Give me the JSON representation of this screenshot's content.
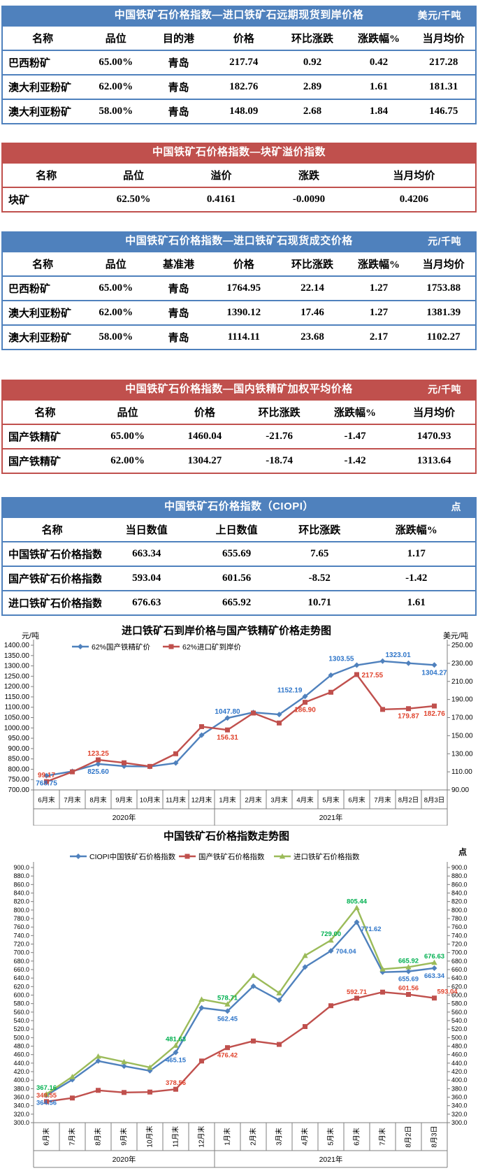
{
  "tables": [
    {
      "title": "中国铁矿石价格指数—进口铁矿石远期现货到岸价格",
      "unit": "美元/千吨",
      "theme": "blue",
      "columns": [
        "名称",
        "品位",
        "目的港",
        "价格",
        "环比涨跌",
        "涨跌幅%",
        "当月均价"
      ],
      "rows": [
        [
          "巴西粉矿",
          "65.00%",
          "青岛",
          "217.74",
          "0.92",
          "0.42",
          "217.28"
        ],
        [
          "澳大利亚粉矿",
          "62.00%",
          "青岛",
          "182.76",
          "2.89",
          "1.61",
          "181.31"
        ],
        [
          "澳大利亚粉矿",
          "58.00%",
          "青岛",
          "148.09",
          "2.68",
          "1.84",
          "146.75"
        ]
      ]
    },
    {
      "title": "中国铁矿石价格指数—块矿溢价指数",
      "unit": "",
      "theme": "red",
      "columns": [
        "名称",
        "品位",
        "溢价",
        "涨跌",
        "当月均价"
      ],
      "rows": [
        [
          "块矿",
          "62.50%",
          "0.4161",
          "-0.0090",
          "0.4206"
        ]
      ]
    },
    {
      "title": "中国铁矿石价格指数—进口铁矿石现货成交价格",
      "unit": "元/千吨",
      "theme": "blue",
      "columns": [
        "名称",
        "品位",
        "基准港",
        "价格",
        "环比涨跌",
        "涨跌幅%",
        "当月均价"
      ],
      "rows": [
        [
          "巴西粉矿",
          "65.00%",
          "青岛",
          "1764.95",
          "22.14",
          "1.27",
          "1753.88"
        ],
        [
          "澳大利亚粉矿",
          "62.00%",
          "青岛",
          "1390.12",
          "17.46",
          "1.27",
          "1381.39"
        ],
        [
          "澳大利亚粉矿",
          "58.00%",
          "青岛",
          "1114.11",
          "23.68",
          "2.17",
          "1102.27"
        ]
      ]
    },
    {
      "title": "中国铁矿石价格指数—国内铁精矿加权平均价格",
      "unit": "元/千吨",
      "theme": "red",
      "columns": [
        "名称",
        "品位",
        "价格",
        "环比涨跌",
        "涨跌幅%",
        "当月均价"
      ],
      "rows": [
        [
          "国产铁精矿",
          "65.00%",
          "1460.04",
          "-21.76",
          "-1.47",
          "1470.93"
        ],
        [
          "国产铁精矿",
          "62.00%",
          "1304.27",
          "-18.74",
          "-1.42",
          "1313.64"
        ]
      ]
    },
    {
      "title": "中国铁矿石价格指数（CIOPI）",
      "unit": "点",
      "theme": "blue",
      "columns": [
        "名称",
        "当日数值",
        "上日数值",
        "环比涨跌",
        "涨跌幅%"
      ],
      "rows": [
        [
          "中国铁矿石价格指数",
          "663.34",
          "655.69",
          "7.65",
          "1.17"
        ],
        [
          "国产铁矿石价格指数",
          "593.04",
          "601.56",
          "-8.52",
          "-1.42"
        ],
        [
          "进口铁矿石价格指数",
          "676.63",
          "665.92",
          "10.71",
          "1.61"
        ]
      ]
    }
  ],
  "chart_data": [
    {
      "type": "line",
      "title": "进口铁矿石到岸价格与国产铁精矿价格走势图",
      "left_axis": {
        "label": "元/吨",
        "min": 700,
        "max": 1400,
        "step": 50,
        "decimals": 2
      },
      "right_axis": {
        "label": "美元/吨",
        "min": 90,
        "max": 250,
        "step": 20,
        "decimals": 2
      },
      "categories": [
        "6月末",
        "7月末",
        "8月末",
        "9月末",
        "10月末",
        "11月末",
        "12月末",
        "1月末",
        "2月末",
        "3月末",
        "4月末",
        "5月末",
        "6月末",
        "7月末",
        "8月2日",
        "8月3日"
      ],
      "year_groups": [
        {
          "label": "2020年",
          "count": 7
        },
        {
          "label": "2021年",
          "count": 9
        }
      ],
      "series": [
        {
          "name": "62%国产铁精矿价",
          "axis": "left",
          "marker": "diamond",
          "color": "#4f81bd",
          "label_color": "#2e75c9",
          "values": [
            768.75,
            790,
            825.6,
            815,
            813,
            830,
            965,
            1047.8,
            1075,
            1065,
            1152.19,
            1255,
            1303.55,
            1323.01,
            1313,
            1304.27
          ]
        },
        {
          "name": "62%进口矿到岸价",
          "axis": "right",
          "marker": "square",
          "color": "#c0504d",
          "label_color": "#e0442e",
          "values": [
            99.17,
            110,
            123.25,
            120,
            116,
            130,
            160,
            156.31,
            175,
            164,
            186.9,
            198,
            217.55,
            179,
            179.87,
            182.76
          ]
        }
      ],
      "point_labels": [
        {
          "series": 0,
          "index": 0,
          "text": "768.75",
          "pos": "below"
        },
        {
          "series": 0,
          "index": 2,
          "text": "825.60",
          "pos": "below"
        },
        {
          "series": 0,
          "index": 7,
          "text": "1047.80",
          "pos": "above"
        },
        {
          "series": 0,
          "index": 10,
          "text": "1152.19",
          "pos": "above-left"
        },
        {
          "series": 0,
          "index": 12,
          "text": "1303.55",
          "pos": "above-left"
        },
        {
          "series": 0,
          "index": 13,
          "text": "1323.01",
          "pos": "above-right"
        },
        {
          "series": 0,
          "index": 15,
          "text": "1304.27",
          "pos": "below"
        },
        {
          "series": 1,
          "index": 0,
          "text": "99.17",
          "pos": "above"
        },
        {
          "series": 1,
          "index": 2,
          "text": "123.25",
          "pos": "above"
        },
        {
          "series": 1,
          "index": 7,
          "text": "156.31",
          "pos": "below"
        },
        {
          "series": 1,
          "index": 10,
          "text": "186.90",
          "pos": "below"
        },
        {
          "series": 1,
          "index": 12,
          "text": "217.55",
          "pos": "right"
        },
        {
          "series": 1,
          "index": 14,
          "text": "179.87",
          "pos": "below"
        },
        {
          "series": 1,
          "index": 15,
          "text": "182.76",
          "pos": "below"
        }
      ]
    },
    {
      "type": "line",
      "title": "中国铁矿石价格指数走势图",
      "unit_label": "点",
      "left_axis": {
        "label": "",
        "min": 300,
        "max": 900,
        "step": 20,
        "decimals": 1
      },
      "right_axis": {
        "label": "",
        "min": 300,
        "max": 900,
        "step": 20,
        "decimals": 1
      },
      "categories": [
        "6月末",
        "7月末",
        "8月末",
        "9月末",
        "10月末",
        "11月末",
        "12月末",
        "1月末",
        "2月末",
        "3月末",
        "4月末",
        "5月末",
        "6月末",
        "7月末",
        "8月2日",
        "8月3日"
      ],
      "year_groups": [
        {
          "label": "2020年",
          "count": 7
        },
        {
          "label": "2021年",
          "count": 9
        }
      ],
      "series": [
        {
          "name": "CIOPI中国铁矿石价格指数",
          "axis": "left",
          "marker": "diamond",
          "color": "#4f81bd",
          "label_color": "#2e75c9",
          "values": [
            364.56,
            401,
            445,
            433,
            422,
            465.15,
            570,
            562.45,
            621,
            588,
            666,
            704.04,
            771.62,
            654,
            655.69,
            663.34
          ]
        },
        {
          "name": "国产铁矿石价格指数",
          "axis": "left",
          "marker": "square",
          "color": "#c0504d",
          "label_color": "#e0442e",
          "values": [
            349.55,
            358,
            376,
            371,
            372,
            378.56,
            445,
            476.42,
            492,
            484,
            526,
            575,
            592.71,
            607,
            601.56,
            593.04
          ]
        },
        {
          "name": "进口铁矿石价格指数",
          "axis": "left",
          "marker": "triangle",
          "color": "#9bbb59",
          "label_color": "#00b050",
          "values": [
            367.16,
            408,
            456,
            443,
            430,
            481.63,
            590,
            578.71,
            646,
            605,
            693,
            729,
            805.44,
            661,
            665.92,
            676.63
          ]
        }
      ],
      "point_labels": [
        {
          "series": 2,
          "index": 0,
          "text": "367.16",
          "pos": "above"
        },
        {
          "series": 1,
          "index": 0,
          "text": "349.55",
          "pos": "above"
        },
        {
          "series": 0,
          "index": 0,
          "text": "364.56",
          "pos": "below"
        },
        {
          "series": 2,
          "index": 5,
          "text": "481.63",
          "pos": "above"
        },
        {
          "series": 0,
          "index": 5,
          "text": "465.15",
          "pos": "below"
        },
        {
          "series": 1,
          "index": 5,
          "text": "378.56",
          "pos": "above"
        },
        {
          "series": 2,
          "index": 7,
          "text": "578.71",
          "pos": "above"
        },
        {
          "series": 0,
          "index": 7,
          "text": "562.45",
          "pos": "below"
        },
        {
          "series": 1,
          "index": 7,
          "text": "476.42",
          "pos": "below"
        },
        {
          "series": 2,
          "index": 11,
          "text": "729.00",
          "pos": "above"
        },
        {
          "series": 0,
          "index": 11,
          "text": "704.04",
          "pos": "right"
        },
        {
          "series": 2,
          "index": 12,
          "text": "805.44",
          "pos": "above"
        },
        {
          "series": 0,
          "index": 12,
          "text": "771.62",
          "pos": "below-right"
        },
        {
          "series": 1,
          "index": 12,
          "text": "592.71",
          "pos": "above"
        },
        {
          "series": 2,
          "index": 14,
          "text": "665.92",
          "pos": "above"
        },
        {
          "series": 0,
          "index": 14,
          "text": "655.69",
          "pos": "below"
        },
        {
          "series": 1,
          "index": 14,
          "text": "601.56",
          "pos": "above"
        },
        {
          "series": 2,
          "index": 15,
          "text": "676.63",
          "pos": "above"
        },
        {
          "series": 0,
          "index": 15,
          "text": "663.34",
          "pos": "below"
        },
        {
          "series": 1,
          "index": 15,
          "text": "593.04",
          "pos": "above-right"
        }
      ]
    }
  ]
}
